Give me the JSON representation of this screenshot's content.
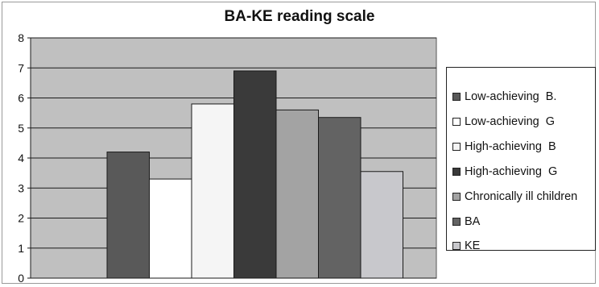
{
  "chart_data": {
    "type": "bar",
    "title": "BA-KE reading scale",
    "xlabel": "",
    "ylabel": "",
    "ylim": [
      0,
      8
    ],
    "yticks": [
      "0",
      "1",
      "2",
      "3",
      "4",
      "5",
      "6",
      "7",
      "8"
    ],
    "grid": true,
    "legend_position": "right",
    "plot_background": "#c0c0c0",
    "series": [
      {
        "name": "Low-achieving  B.",
        "value": 4.2,
        "color": "#595959"
      },
      {
        "name": "Low-achieving  G",
        "value": 3.3,
        "color": "#ffffff"
      },
      {
        "name": "High-achieving  B",
        "value": 5.8,
        "color": "#f5f5f5"
      },
      {
        "name": "High-achieving  G",
        "value": 6.9,
        "color": "#3a3a3a"
      },
      {
        "name": "Chronically ill children",
        "value": 5.6,
        "color": "#a3a3a3"
      },
      {
        "name": "BA",
        "value": 5.35,
        "color": "#636363"
      },
      {
        "name": "KE",
        "value": 3.55,
        "color": "#c8c8cc"
      }
    ]
  }
}
